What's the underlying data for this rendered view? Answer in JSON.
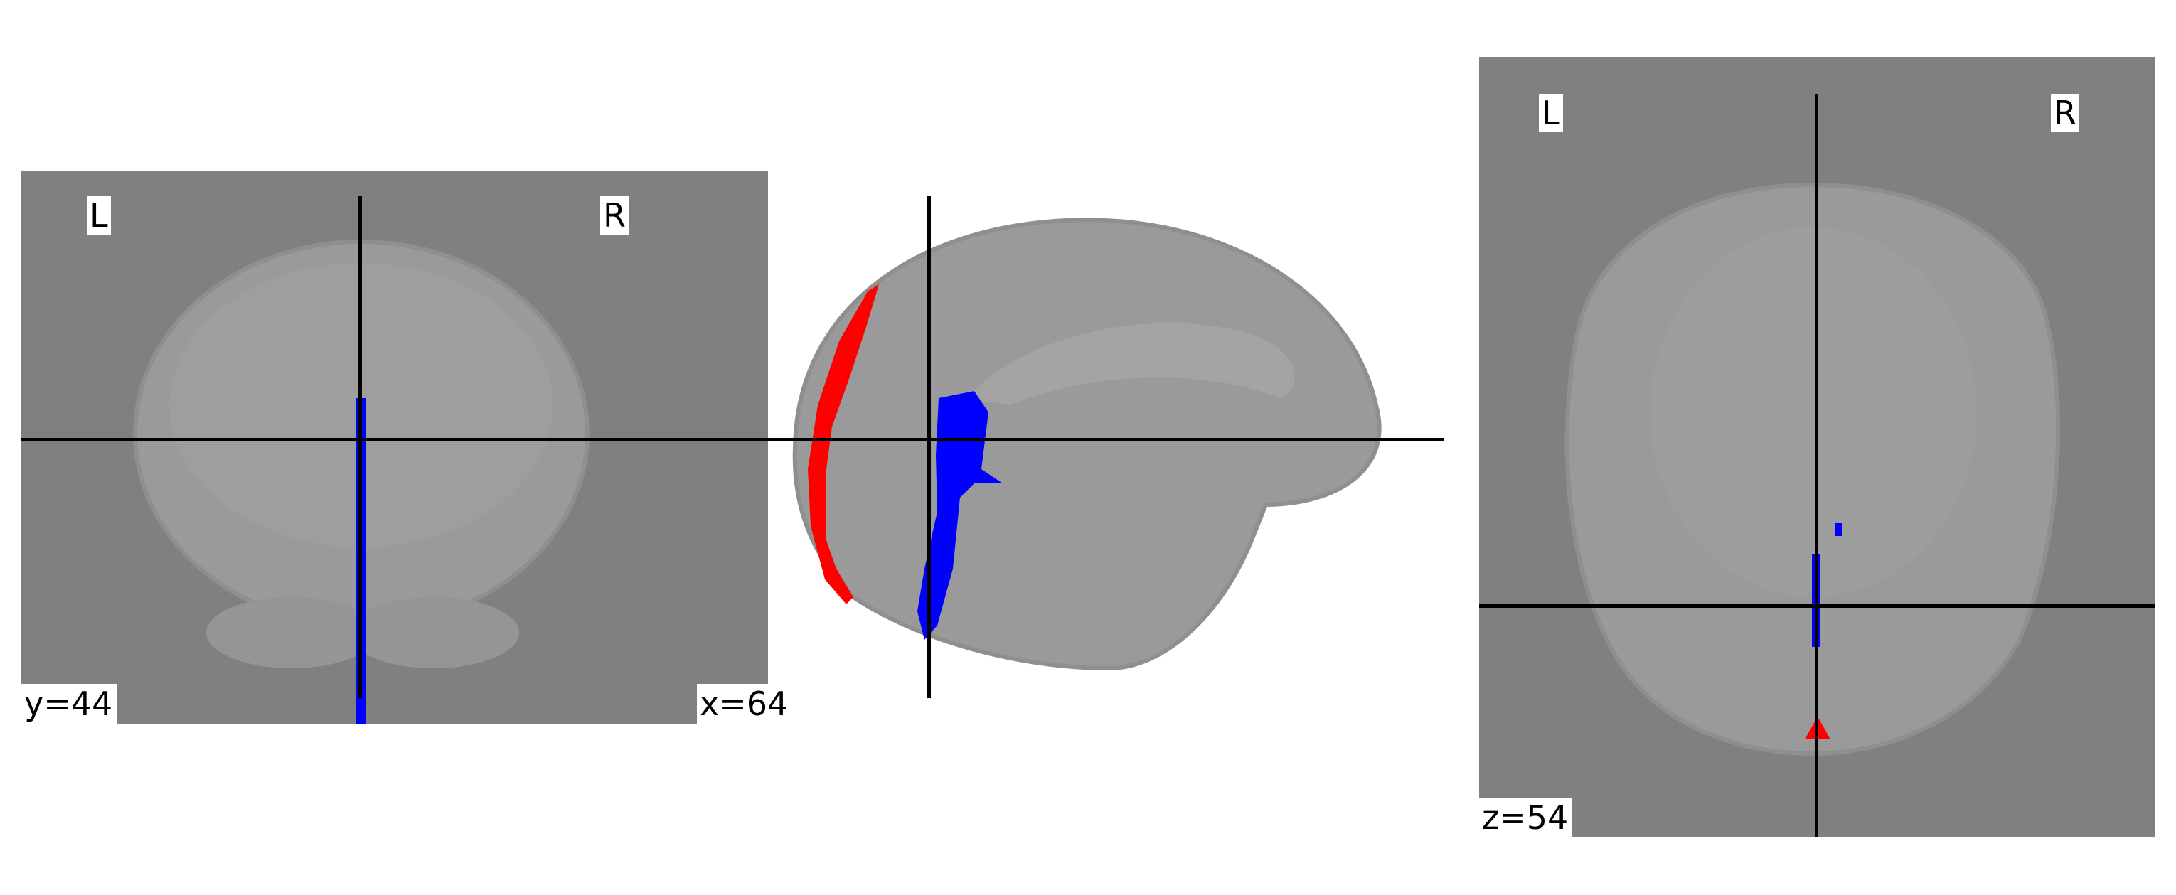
{
  "panels": {
    "coronal": {
      "left_label": "L",
      "right_label": "R",
      "coord_label": "y=44"
    },
    "sagittal": {
      "coord_label": "x=64"
    },
    "axial": {
      "left_label": "L",
      "right_label": "R",
      "coord_label": "z=54"
    }
  },
  "colors": {
    "background": "#808080",
    "overlay_positive": "#ff0000",
    "overlay_negative": "#0000ff",
    "crosshair": "#000000"
  }
}
